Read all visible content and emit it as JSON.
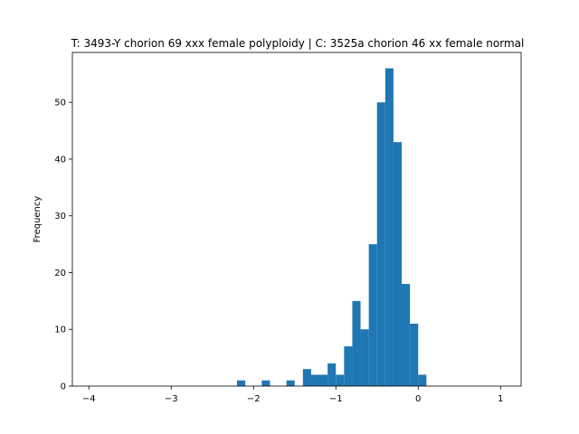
{
  "chart_data": {
    "type": "bar",
    "title": "T: 3493-Y chorion 69 xxx female polyploidy | C: 3525a chorion 46 xx female normal",
    "xlabel": "",
    "ylabel": "Frequency",
    "xlim": [
      -4.2,
      1.25
    ],
    "ylim": [
      0,
      58.8
    ],
    "x_ticks": [
      -4,
      -3,
      -2,
      -1,
      0,
      1
    ],
    "x_tick_labels": [
      "−4",
      "−3",
      "−2",
      "−1",
      "0",
      "1"
    ],
    "y_ticks": [
      0,
      10,
      20,
      30,
      40,
      50
    ],
    "y_tick_labels": [
      "0",
      "10",
      "20",
      "30",
      "40",
      "50"
    ],
    "bar_color": "#1f77b4",
    "grid": false,
    "bins": [
      {
        "x0": -2.2,
        "x1": -2.1,
        "count": 1
      },
      {
        "x0": -1.9,
        "x1": -1.8,
        "count": 1
      },
      {
        "x0": -1.6,
        "x1": -1.5,
        "count": 1
      },
      {
        "x0": -1.4,
        "x1": -1.3,
        "count": 3
      },
      {
        "x0": -1.3,
        "x1": -1.2,
        "count": 2
      },
      {
        "x0": -1.2,
        "x1": -1.1,
        "count": 2
      },
      {
        "x0": -1.1,
        "x1": -1.0,
        "count": 4
      },
      {
        "x0": -1.0,
        "x1": -0.9,
        "count": 2
      },
      {
        "x0": -0.9,
        "x1": -0.8,
        "count": 7
      },
      {
        "x0": -0.8,
        "x1": -0.7,
        "count": 15
      },
      {
        "x0": -0.7,
        "x1": -0.6,
        "count": 10
      },
      {
        "x0": -0.6,
        "x1": -0.5,
        "count": 25
      },
      {
        "x0": -0.5,
        "x1": -0.4,
        "count": 50
      },
      {
        "x0": -0.4,
        "x1": -0.3,
        "count": 56
      },
      {
        "x0": -0.3,
        "x1": -0.2,
        "count": 43
      },
      {
        "x0": -0.2,
        "x1": -0.1,
        "count": 18
      },
      {
        "x0": -0.1,
        "x1": 0.0,
        "count": 11
      },
      {
        "x0": 0.0,
        "x1": 0.1,
        "count": 2
      }
    ]
  }
}
